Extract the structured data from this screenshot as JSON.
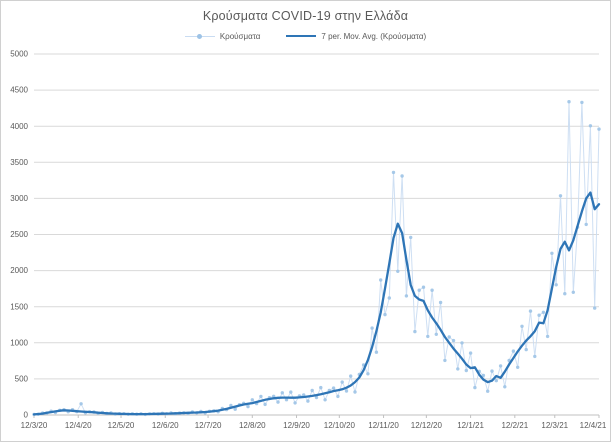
{
  "chart": {
    "title": "Κρούσματα COVID-19 στην Ελλάδα",
    "legend": [
      {
        "label": "Κρούσματα",
        "type": "scatter"
      },
      {
        "label": "7 per. Mov. Avg. (Κρούσματα)",
        "type": "line"
      }
    ],
    "colors": {
      "scatter_dot": "#9dc3e6",
      "scatter_connector": "#c9dcf2",
      "moving_average": "#2e75b6",
      "gridline": "#d9d9d9",
      "axis_line": "#c0c0c0",
      "tick_label": "#595959",
      "title_text": "#595959"
    }
  },
  "chart_data": {
    "type": "line",
    "title": "Κρούσματα COVID-19 στην Ελλάδα",
    "xlabel": "",
    "ylabel": "",
    "ylim": [
      0,
      5000
    ],
    "y_tick_step": 500,
    "y_tick_labels": [
      "0",
      "500",
      "1000",
      "1500",
      "2000",
      "2500",
      "3000",
      "3500",
      "4000",
      "4500",
      "5000"
    ],
    "x_tick_labels": [
      "12/3/20",
      "12/4/20",
      "12/5/20",
      "12/6/20",
      "12/7/20",
      "12/8/20",
      "12/9/20",
      "12/10/20",
      "12/11/20",
      "12/12/20",
      "12/1/21",
      "12/2/21",
      "12/3/21",
      "12/4/21"
    ],
    "x_tick_days": [
      0,
      31,
      61,
      92,
      122,
      153,
      184,
      214,
      245,
      275,
      306,
      337,
      365,
      396
    ],
    "total_days": 396,
    "sample_step_days": 3,
    "grid": true,
    "legend_position": "top",
    "series": [
      {
        "name": "Κρούσματα",
        "type": "scatter",
        "values": [
          9,
          10,
          26,
          26,
          53,
          35,
          65,
          73,
          46,
          74,
          47,
          155,
          31,
          45,
          41,
          24,
          36,
          21,
          28,
          13,
          18,
          17,
          10,
          17,
          11,
          16,
          9,
          15,
          17,
          13,
          23,
          17,
          28,
          16,
          27,
          31,
          22,
          42,
          31,
          50,
          29,
          51,
          58,
          46,
          92,
          75,
          132,
          81,
          143,
          162,
          116,
          211,
          158,
          257,
          147,
          240,
          259,
          178,
          308,
          212,
          317,
          168,
          264,
          279,
          192,
          339,
          242,
          380,
          211,
          340,
          372,
          257,
          456,
          333,
          539,
          319,
          562,
          694,
          570,
          1203,
          870,
          1870,
          1390,
          1620,
          3360,
          1990,
          3310,
          1650,
          2460,
          1155,
          1728,
          1770,
          1088,
          1728,
          1118,
          1558,
          756,
          1080,
          1030,
          638,
          998,
          616,
          858,
          380,
          605,
          549,
          330,
          608,
          475,
          680,
          390,
          756,
          885,
          660,
          1229,
          906,
          1439,
          812,
          1382,
          1422,
          1088,
          2240,
          1804,
          3036,
          1680,
          4340,
          1700,
          2600,
          4330,
          2640,
          4005,
          1480,
          3960
        ]
      },
      {
        "name": "7 per. Mov. Avg. (Κρούσματα)",
        "type": "line",
        "values": [
          8,
          14,
          20,
          30,
          40,
          50,
          60,
          65,
          62,
          58,
          53,
          49,
          45,
          42,
          37,
          32,
          28,
          24,
          21,
          19,
          17,
          15,
          14,
          13,
          12,
          12,
          13,
          14,
          15,
          17,
          18,
          19,
          21,
          23,
          25,
          28,
          30,
          33,
          35,
          38,
          42,
          47,
          52,
          61,
          72,
          85,
          100,
          116,
          132,
          145,
          155,
          165,
          180,
          195,
          210,
          222,
          231,
          238,
          241,
          241,
          240,
          240,
          244,
          249,
          256,
          265,
          275,
          288,
          302,
          315,
          332,
          343,
          356,
          378,
          408,
          455,
          520,
          620,
          760,
          940,
          1160,
          1420,
          1750,
          2100,
          2450,
          2650,
          2520,
          2150,
          1800,
          1650,
          1600,
          1580,
          1450,
          1350,
          1270,
          1180,
          1080,
          1000,
          920,
          850,
          780,
          700,
          650,
          660,
          560,
          490,
          455,
          475,
          540,
          515,
          600,
          700,
          790,
          880,
          960,
          1030,
          1090,
          1160,
          1280,
          1270,
          1450,
          1750,
          2050,
          2300,
          2400,
          2280,
          2420,
          2620,
          2820,
          3000,
          3080,
          2850,
          2920
        ]
      }
    ]
  }
}
